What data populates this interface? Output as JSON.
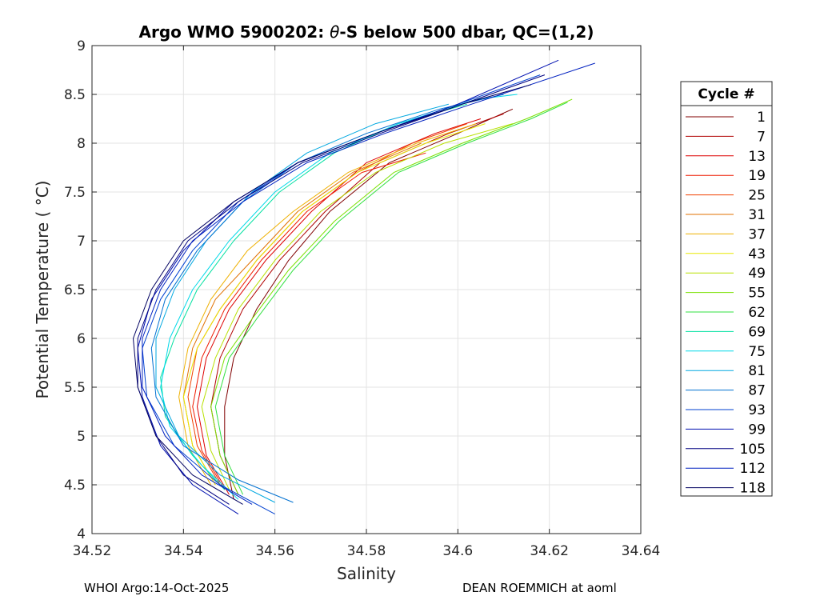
{
  "chart_data": {
    "type": "line",
    "title_prefix": "Argo WMO 5900202: ",
    "title_symbol": "θ",
    "title_suffix": "-S below 500 dbar,  QC=(1,2)",
    "xlabel": "Salinity",
    "ylabel": "Potential Temperature ( °C)",
    "xlim": [
      34.52,
      34.64
    ],
    "ylim": [
      4,
      9
    ],
    "xticks": [
      34.52,
      34.54,
      34.56,
      34.58,
      34.6,
      34.62,
      34.64
    ],
    "xtick_labels": [
      "34.52",
      "34.54",
      "34.56",
      "34.58",
      "34.6",
      "34.62",
      "34.64"
    ],
    "yticks": [
      4,
      4.5,
      5,
      5.5,
      6,
      6.5,
      7,
      7.5,
      8,
      8.5,
      9
    ],
    "ytick_labels": [
      "4",
      "4.5",
      "5",
      "5.5",
      "6",
      "6.5",
      "7",
      "7.5",
      "8",
      "8.5",
      "9"
    ],
    "grid": true,
    "legend_position": "right-outside",
    "legend_title": "Cycle #",
    "series": [
      {
        "name": "1",
        "color": "#800000",
        "x": [
          34.551,
          34.549,
          34.549,
          34.551,
          34.556,
          34.563,
          34.572,
          34.585,
          34.6,
          34.612
        ],
        "y": [
          4.35,
          4.8,
          5.3,
          5.8,
          6.3,
          6.8,
          7.3,
          7.8,
          8.1,
          8.35
        ]
      },
      {
        "name": "7",
        "color": "#b00000",
        "x": [
          34.552,
          34.548,
          34.546,
          34.548,
          34.553,
          34.561,
          34.571,
          34.583,
          34.598,
          34.61
        ],
        "y": [
          4.4,
          4.8,
          5.3,
          5.8,
          6.3,
          6.8,
          7.3,
          7.8,
          8.1,
          8.3
        ]
      },
      {
        "name": "13",
        "color": "#dd0000",
        "x": [
          34.55,
          34.545,
          34.543,
          34.545,
          34.55,
          34.558,
          34.568,
          34.58,
          34.595,
          34.605
        ],
        "y": [
          4.4,
          4.8,
          5.3,
          5.8,
          6.3,
          6.8,
          7.3,
          7.8,
          8.1,
          8.25
        ]
      },
      {
        "name": "19",
        "color": "#ee1a00",
        "x": [
          34.549,
          34.544,
          34.542,
          34.544,
          34.549,
          34.557,
          34.567,
          34.579,
          34.593
        ],
        "y": [
          4.45,
          4.85,
          5.3,
          5.8,
          6.3,
          6.8,
          7.3,
          7.7,
          7.9
        ]
      },
      {
        "name": "25",
        "color": "#f04000",
        "x": [
          34.548,
          34.543,
          34.541,
          34.543,
          34.548,
          34.556,
          34.566,
          34.578,
          34.59,
          34.602
        ],
        "y": [
          4.5,
          4.9,
          5.4,
          5.9,
          6.3,
          6.8,
          7.3,
          7.7,
          8.0,
          8.2
        ]
      },
      {
        "name": "31",
        "color": "#e07000",
        "x": [
          34.547,
          34.542,
          34.54,
          34.542,
          34.547,
          34.555,
          34.565,
          34.577,
          34.592
        ],
        "y": [
          4.5,
          4.9,
          5.4,
          5.9,
          6.4,
          6.8,
          7.3,
          7.7,
          8.0
        ]
      },
      {
        "name": "37",
        "color": "#eeb000",
        "x": [
          34.546,
          34.541,
          34.539,
          34.541,
          34.546,
          34.554,
          34.564,
          34.576,
          34.591,
          34.604
        ],
        "y": [
          4.5,
          4.9,
          5.4,
          5.9,
          6.4,
          6.9,
          7.3,
          7.7,
          8.0,
          8.2
        ]
      },
      {
        "name": "43",
        "color": "#e8e800",
        "x": [
          34.547,
          34.542,
          34.54,
          34.543,
          34.548,
          34.556,
          34.566,
          34.578,
          34.593,
          34.606
        ],
        "y": [
          4.5,
          4.9,
          5.4,
          5.9,
          6.3,
          6.8,
          7.3,
          7.7,
          8.0,
          8.2
        ]
      },
      {
        "name": "49",
        "color": "#b8e000",
        "x": [
          34.55,
          34.546,
          34.544,
          34.547,
          34.552,
          34.56,
          34.57,
          34.582,
          34.597,
          34.612
        ],
        "y": [
          4.45,
          4.85,
          5.3,
          5.8,
          6.3,
          6.8,
          7.3,
          7.7,
          8.0,
          8.2
        ]
      },
      {
        "name": "55",
        "color": "#7ae000",
        "x": [
          34.552,
          34.548,
          34.546,
          34.549,
          34.555,
          34.563,
          34.573,
          34.586,
          34.601,
          34.615,
          34.625
        ],
        "y": [
          4.4,
          4.8,
          5.3,
          5.8,
          6.2,
          6.7,
          7.2,
          7.7,
          8.0,
          8.25,
          8.45
        ]
      },
      {
        "name": "62",
        "color": "#30e040",
        "x": [
          34.553,
          34.549,
          34.547,
          34.55,
          34.556,
          34.564,
          34.574,
          34.587,
          34.602,
          34.616,
          34.624
        ],
        "y": [
          4.4,
          4.8,
          5.3,
          5.8,
          6.2,
          6.7,
          7.2,
          7.7,
          8.0,
          8.25,
          8.42
        ]
      },
      {
        "name": "69",
        "color": "#00e0a0",
        "x": [
          34.549,
          34.542,
          34.536,
          34.535,
          34.538,
          34.543,
          34.551,
          34.561,
          34.573,
          34.587,
          34.602
        ],
        "y": [
          4.45,
          4.8,
          5.2,
          5.6,
          6.0,
          6.5,
          7.0,
          7.5,
          7.9,
          8.2,
          8.4
        ]
      },
      {
        "name": "75",
        "color": "#00d8e8",
        "x": [
          34.552,
          34.544,
          34.537,
          34.535,
          34.537,
          34.542,
          34.55,
          34.56,
          34.572,
          34.587,
          34.604,
          34.613
        ],
        "y": [
          4.35,
          4.7,
          5.1,
          5.5,
          6.0,
          6.5,
          7.0,
          7.5,
          7.9,
          8.2,
          8.45,
          8.5
        ]
      },
      {
        "name": "81",
        "color": "#00a8e0",
        "x": [
          34.56,
          34.548,
          34.539,
          34.534,
          34.534,
          34.538,
          34.545,
          34.555,
          34.567,
          34.582,
          34.598
        ],
        "y": [
          4.32,
          4.6,
          5.0,
          5.5,
          6.0,
          6.5,
          7.0,
          7.5,
          7.9,
          8.2,
          8.4
        ]
      },
      {
        "name": "87",
        "color": "#0070d0",
        "x": [
          34.564,
          34.552,
          34.54,
          34.534,
          34.533,
          34.536,
          34.543,
          34.553,
          34.565,
          34.58,
          34.596,
          34.61
        ],
        "y": [
          4.32,
          4.55,
          4.9,
          5.4,
          5.9,
          6.4,
          6.9,
          7.4,
          7.8,
          8.1,
          8.35,
          8.5
        ]
      },
      {
        "name": "93",
        "color": "#0040d0",
        "x": [
          34.56,
          34.548,
          34.538,
          34.532,
          34.531,
          34.535,
          34.542,
          34.552,
          34.565,
          34.582,
          34.6,
          34.618
        ],
        "y": [
          4.2,
          4.5,
          4.9,
          5.4,
          5.9,
          6.4,
          6.9,
          7.4,
          7.8,
          8.1,
          8.4,
          8.7
        ]
      },
      {
        "name": "99",
        "color": "#0010b0",
        "x": [
          34.552,
          34.542,
          34.535,
          34.531,
          34.53,
          34.533,
          34.54,
          34.551,
          34.565,
          34.582,
          34.6,
          34.622
        ],
        "y": [
          4.2,
          4.5,
          4.9,
          5.4,
          5.9,
          6.4,
          6.9,
          7.4,
          7.8,
          8.1,
          8.4,
          8.85
        ]
      },
      {
        "name": "105",
        "color": "#000080",
        "x": [
          34.55,
          34.54,
          34.534,
          34.53,
          34.53,
          34.534,
          34.541,
          34.552,
          34.566,
          34.583,
          34.601,
          34.619
        ],
        "y": [
          4.3,
          4.6,
          5.0,
          5.5,
          6.0,
          6.5,
          7.0,
          7.4,
          7.8,
          8.1,
          8.4,
          8.7
        ]
      },
      {
        "name": "112",
        "color": "#0020c0",
        "x": [
          34.555,
          34.544,
          34.536,
          34.531,
          34.531,
          34.535,
          34.542,
          34.553,
          34.567,
          34.584,
          34.603,
          34.63
        ],
        "y": [
          4.3,
          4.6,
          5.0,
          5.5,
          6.0,
          6.5,
          7.0,
          7.4,
          7.8,
          8.1,
          8.4,
          8.82
        ]
      },
      {
        "name": "118",
        "color": "#000060",
        "x": [
          34.553,
          34.542,
          34.534,
          34.53,
          34.529,
          34.533,
          34.54,
          34.551,
          34.565,
          34.582,
          34.601,
          34.616
        ],
        "y": [
          4.3,
          4.6,
          5.0,
          5.5,
          6.0,
          6.5,
          7.0,
          7.4,
          7.8,
          8.1,
          8.4,
          8.6
        ]
      }
    ]
  },
  "footer": {
    "left": "WHOI Argo:14-Oct-2025",
    "right": "DEAN ROEMMICH at aoml"
  }
}
